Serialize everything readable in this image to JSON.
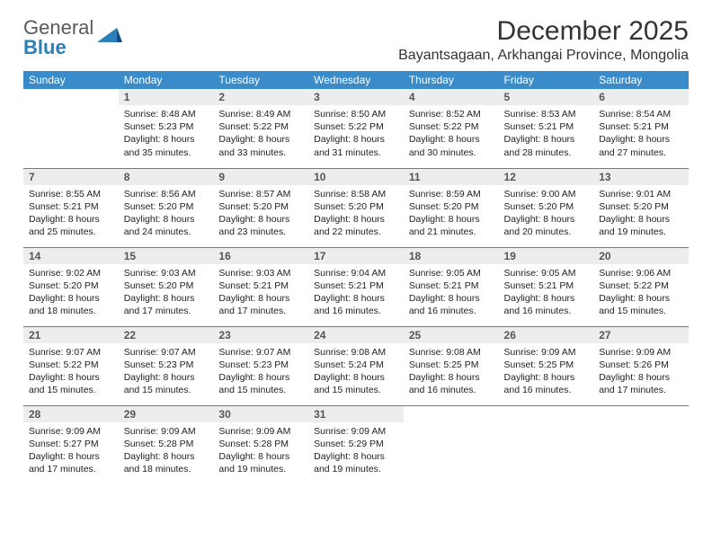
{
  "brand": {
    "general": "General",
    "blue": "Blue"
  },
  "title": "December 2025",
  "location": "Bayantsagaan, Arkhangai Province, Mongolia",
  "colors": {
    "header_bg": "#3a8bc9",
    "header_fg": "#ffffff",
    "daynum_bg": "#eceded",
    "daynum_fg": "#555555",
    "rule": "#3a8bc9",
    "logo_blue": "#2c7fb8",
    "text": "#222222"
  },
  "weekdays": [
    "Sunday",
    "Monday",
    "Tuesday",
    "Wednesday",
    "Thursday",
    "Friday",
    "Saturday"
  ],
  "weeks": [
    [
      null,
      {
        "n": "1",
        "sr": "Sunrise: 8:48 AM",
        "ss": "Sunset: 5:23 PM",
        "dl1": "Daylight: 8 hours",
        "dl2": "and 35 minutes."
      },
      {
        "n": "2",
        "sr": "Sunrise: 8:49 AM",
        "ss": "Sunset: 5:22 PM",
        "dl1": "Daylight: 8 hours",
        "dl2": "and 33 minutes."
      },
      {
        "n": "3",
        "sr": "Sunrise: 8:50 AM",
        "ss": "Sunset: 5:22 PM",
        "dl1": "Daylight: 8 hours",
        "dl2": "and 31 minutes."
      },
      {
        "n": "4",
        "sr": "Sunrise: 8:52 AM",
        "ss": "Sunset: 5:22 PM",
        "dl1": "Daylight: 8 hours",
        "dl2": "and 30 minutes."
      },
      {
        "n": "5",
        "sr": "Sunrise: 8:53 AM",
        "ss": "Sunset: 5:21 PM",
        "dl1": "Daylight: 8 hours",
        "dl2": "and 28 minutes."
      },
      {
        "n": "6",
        "sr": "Sunrise: 8:54 AM",
        "ss": "Sunset: 5:21 PM",
        "dl1": "Daylight: 8 hours",
        "dl2": "and 27 minutes."
      }
    ],
    [
      {
        "n": "7",
        "sr": "Sunrise: 8:55 AM",
        "ss": "Sunset: 5:21 PM",
        "dl1": "Daylight: 8 hours",
        "dl2": "and 25 minutes."
      },
      {
        "n": "8",
        "sr": "Sunrise: 8:56 AM",
        "ss": "Sunset: 5:20 PM",
        "dl1": "Daylight: 8 hours",
        "dl2": "and 24 minutes."
      },
      {
        "n": "9",
        "sr": "Sunrise: 8:57 AM",
        "ss": "Sunset: 5:20 PM",
        "dl1": "Daylight: 8 hours",
        "dl2": "and 23 minutes."
      },
      {
        "n": "10",
        "sr": "Sunrise: 8:58 AM",
        "ss": "Sunset: 5:20 PM",
        "dl1": "Daylight: 8 hours",
        "dl2": "and 22 minutes."
      },
      {
        "n": "11",
        "sr": "Sunrise: 8:59 AM",
        "ss": "Sunset: 5:20 PM",
        "dl1": "Daylight: 8 hours",
        "dl2": "and 21 minutes."
      },
      {
        "n": "12",
        "sr": "Sunrise: 9:00 AM",
        "ss": "Sunset: 5:20 PM",
        "dl1": "Daylight: 8 hours",
        "dl2": "and 20 minutes."
      },
      {
        "n": "13",
        "sr": "Sunrise: 9:01 AM",
        "ss": "Sunset: 5:20 PM",
        "dl1": "Daylight: 8 hours",
        "dl2": "and 19 minutes."
      }
    ],
    [
      {
        "n": "14",
        "sr": "Sunrise: 9:02 AM",
        "ss": "Sunset: 5:20 PM",
        "dl1": "Daylight: 8 hours",
        "dl2": "and 18 minutes."
      },
      {
        "n": "15",
        "sr": "Sunrise: 9:03 AM",
        "ss": "Sunset: 5:20 PM",
        "dl1": "Daylight: 8 hours",
        "dl2": "and 17 minutes."
      },
      {
        "n": "16",
        "sr": "Sunrise: 9:03 AM",
        "ss": "Sunset: 5:21 PM",
        "dl1": "Daylight: 8 hours",
        "dl2": "and 17 minutes."
      },
      {
        "n": "17",
        "sr": "Sunrise: 9:04 AM",
        "ss": "Sunset: 5:21 PM",
        "dl1": "Daylight: 8 hours",
        "dl2": "and 16 minutes."
      },
      {
        "n": "18",
        "sr": "Sunrise: 9:05 AM",
        "ss": "Sunset: 5:21 PM",
        "dl1": "Daylight: 8 hours",
        "dl2": "and 16 minutes."
      },
      {
        "n": "19",
        "sr": "Sunrise: 9:05 AM",
        "ss": "Sunset: 5:21 PM",
        "dl1": "Daylight: 8 hours",
        "dl2": "and 16 minutes."
      },
      {
        "n": "20",
        "sr": "Sunrise: 9:06 AM",
        "ss": "Sunset: 5:22 PM",
        "dl1": "Daylight: 8 hours",
        "dl2": "and 15 minutes."
      }
    ],
    [
      {
        "n": "21",
        "sr": "Sunrise: 9:07 AM",
        "ss": "Sunset: 5:22 PM",
        "dl1": "Daylight: 8 hours",
        "dl2": "and 15 minutes."
      },
      {
        "n": "22",
        "sr": "Sunrise: 9:07 AM",
        "ss": "Sunset: 5:23 PM",
        "dl1": "Daylight: 8 hours",
        "dl2": "and 15 minutes."
      },
      {
        "n": "23",
        "sr": "Sunrise: 9:07 AM",
        "ss": "Sunset: 5:23 PM",
        "dl1": "Daylight: 8 hours",
        "dl2": "and 15 minutes."
      },
      {
        "n": "24",
        "sr": "Sunrise: 9:08 AM",
        "ss": "Sunset: 5:24 PM",
        "dl1": "Daylight: 8 hours",
        "dl2": "and 15 minutes."
      },
      {
        "n": "25",
        "sr": "Sunrise: 9:08 AM",
        "ss": "Sunset: 5:25 PM",
        "dl1": "Daylight: 8 hours",
        "dl2": "and 16 minutes."
      },
      {
        "n": "26",
        "sr": "Sunrise: 9:09 AM",
        "ss": "Sunset: 5:25 PM",
        "dl1": "Daylight: 8 hours",
        "dl2": "and 16 minutes."
      },
      {
        "n": "27",
        "sr": "Sunrise: 9:09 AM",
        "ss": "Sunset: 5:26 PM",
        "dl1": "Daylight: 8 hours",
        "dl2": "and 17 minutes."
      }
    ],
    [
      {
        "n": "28",
        "sr": "Sunrise: 9:09 AM",
        "ss": "Sunset: 5:27 PM",
        "dl1": "Daylight: 8 hours",
        "dl2": "and 17 minutes."
      },
      {
        "n": "29",
        "sr": "Sunrise: 9:09 AM",
        "ss": "Sunset: 5:28 PM",
        "dl1": "Daylight: 8 hours",
        "dl2": "and 18 minutes."
      },
      {
        "n": "30",
        "sr": "Sunrise: 9:09 AM",
        "ss": "Sunset: 5:28 PM",
        "dl1": "Daylight: 8 hours",
        "dl2": "and 19 minutes."
      },
      {
        "n": "31",
        "sr": "Sunrise: 9:09 AM",
        "ss": "Sunset: 5:29 PM",
        "dl1": "Daylight: 8 hours",
        "dl2": "and 19 minutes."
      },
      null,
      null,
      null
    ]
  ]
}
